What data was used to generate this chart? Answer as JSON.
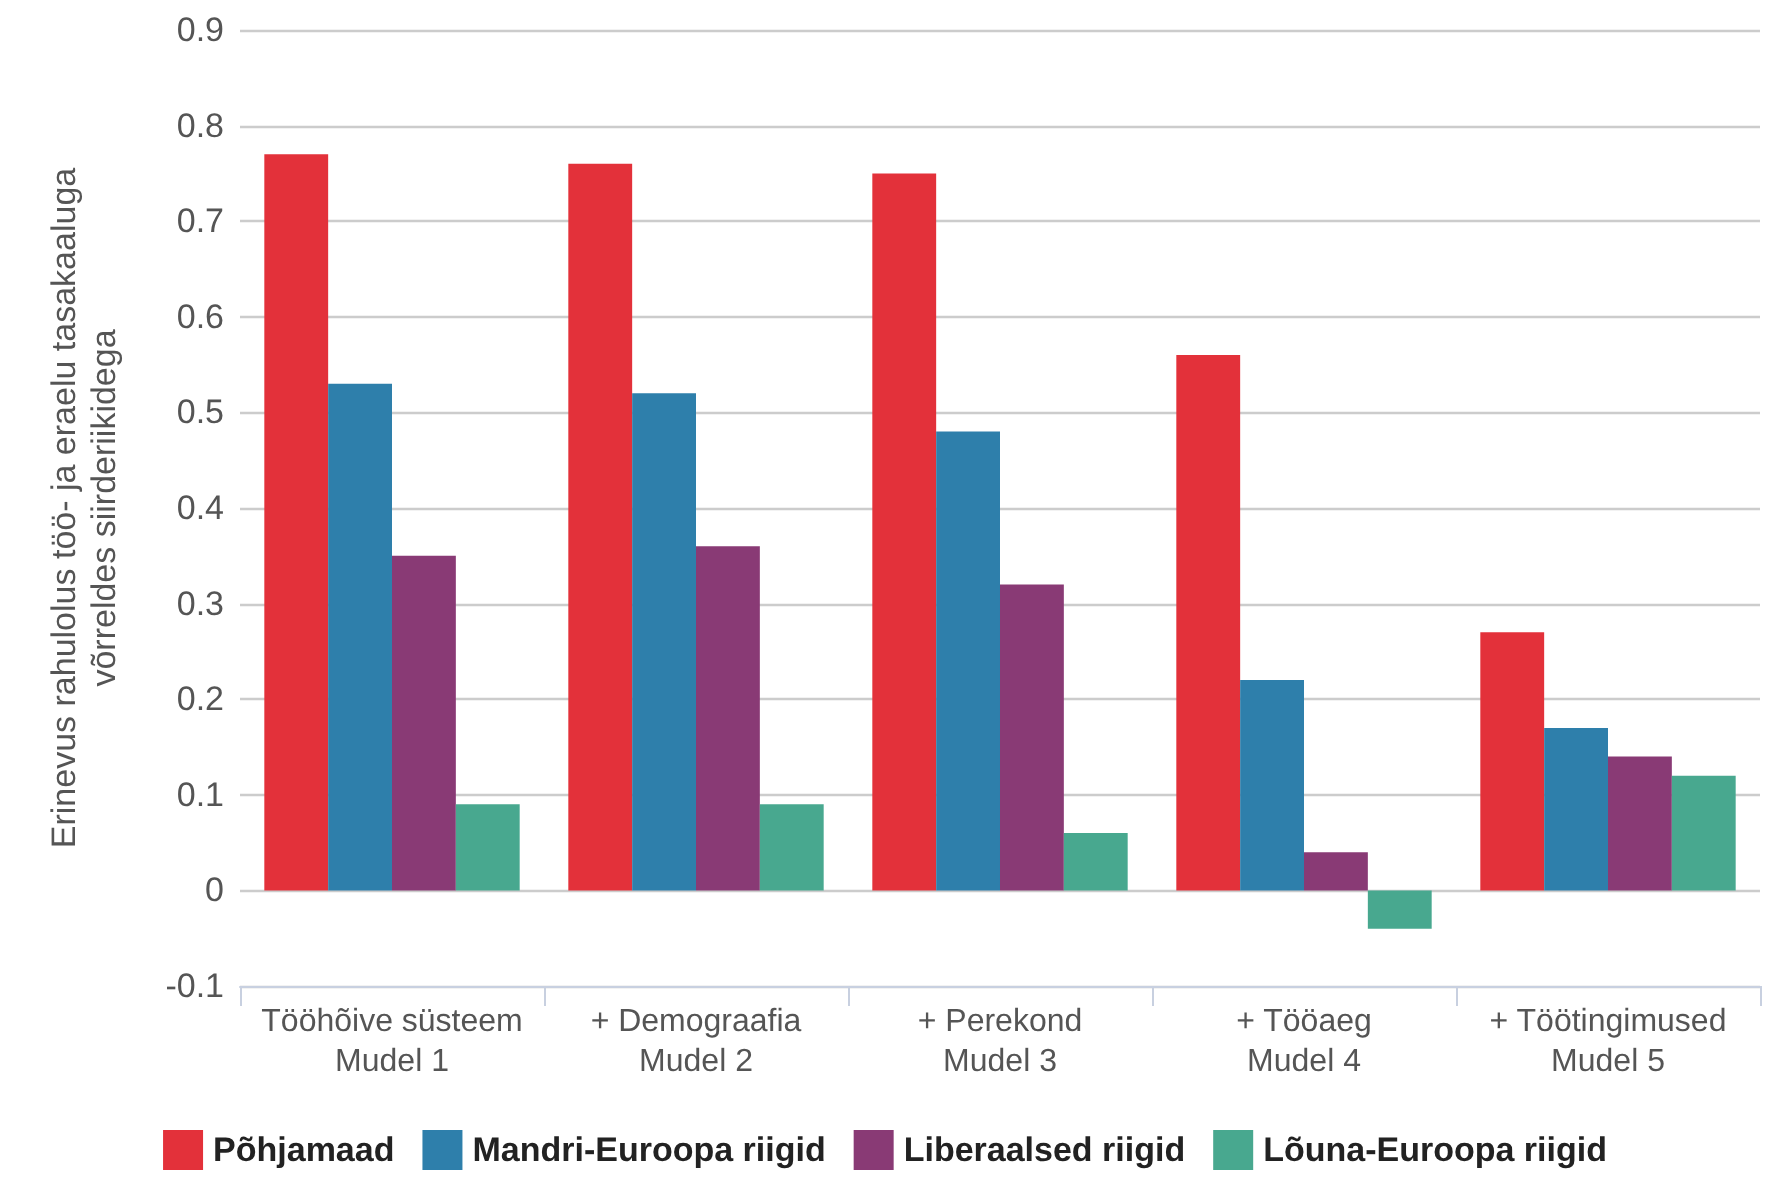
{
  "chart_data": {
    "type": "bar",
    "ylabel": "Erinevus rahulolus töö- ja eraelu tasakaaluga\nvõrreldes siirderiikidega",
    "categories": [
      "Tööhõive süsteem\nMudel 1",
      "+ Demograafia\nMudel 2",
      "+ Perekond\nMudel 3",
      "+ Tööaeg\nMudel 4",
      "+ Töötingimused\nMudel 5"
    ],
    "series": [
      {
        "name": "Põhjamaad",
        "color": "#e3313a",
        "values": [
          0.77,
          0.76,
          0.75,
          0.56,
          0.27
        ]
      },
      {
        "name": "Mandri-Euroopa riigid",
        "color": "#2e7fab",
        "values": [
          0.53,
          0.52,
          0.48,
          0.22,
          0.17
        ]
      },
      {
        "name": "Liberaalsed riigid",
        "color": "#893a75",
        "values": [
          0.35,
          0.36,
          0.32,
          0.04,
          0.14
        ]
      },
      {
        "name": "Lõuna-Euroopa riigid",
        "color": "#48a88f",
        "values": [
          0.09,
          0.09,
          0.06,
          -0.04,
          0.12
        ]
      }
    ],
    "ylim": [
      -0.1,
      0.9
    ],
    "yticks": [
      -0.1,
      0,
      0.1,
      0.2,
      0.3,
      0.4,
      0.5,
      0.6,
      0.7,
      0.8,
      0.9
    ],
    "grid": "y",
    "legend": "bottom"
  }
}
